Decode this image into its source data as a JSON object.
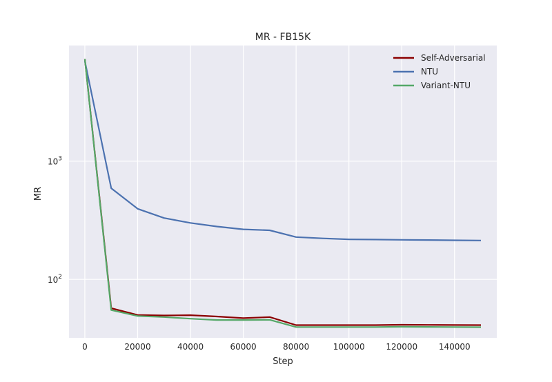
{
  "chart_data": {
    "type": "line",
    "title": "MR - FB15K",
    "xlabel": "Step",
    "ylabel": "MR",
    "yscale": "log",
    "xlim": [
      -6000,
      156000
    ],
    "ylim": [
      32,
      9500
    ],
    "x_ticks": [
      0,
      20000,
      40000,
      60000,
      80000,
      100000,
      120000,
      140000
    ],
    "x_tick_labels": [
      "0",
      "20000",
      "40000",
      "60000",
      "80000",
      "100000",
      "120000",
      "140000"
    ],
    "y_ticks": [
      {
        "value": 100,
        "base": "10",
        "exp": "2"
      },
      {
        "value": 1000,
        "base": "10",
        "exp": "3"
      }
    ],
    "grid": true,
    "legend_position": "top-right",
    "x": [
      0,
      10000,
      20000,
      30000,
      40000,
      50000,
      60000,
      70000,
      80000,
      90000,
      100000,
      110000,
      120000,
      130000,
      140000,
      150000
    ],
    "series": [
      {
        "name": "Self-Adversarial",
        "color": "#8b0000",
        "values": [
          7300,
          57,
          50,
          49.5,
          49.8,
          48.5,
          47,
          48,
          41,
          41,
          41,
          41,
          41.3,
          41.2,
          41.1,
          41
        ]
      },
      {
        "name": "NTU",
        "color": "#4c72b0",
        "values": [
          7000,
          590,
          395,
          330,
          300,
          280,
          265,
          260,
          228,
          222,
          218,
          217,
          216,
          215,
          214,
          213
        ]
      },
      {
        "name": "Variant-NTU",
        "color": "#55a868",
        "values": [
          7300,
          55,
          49,
          48,
          46.5,
          45.3,
          45.3,
          45.5,
          39.5,
          39.5,
          39.5,
          39.5,
          39.7,
          39.6,
          39.5,
          39.4
        ]
      }
    ]
  }
}
